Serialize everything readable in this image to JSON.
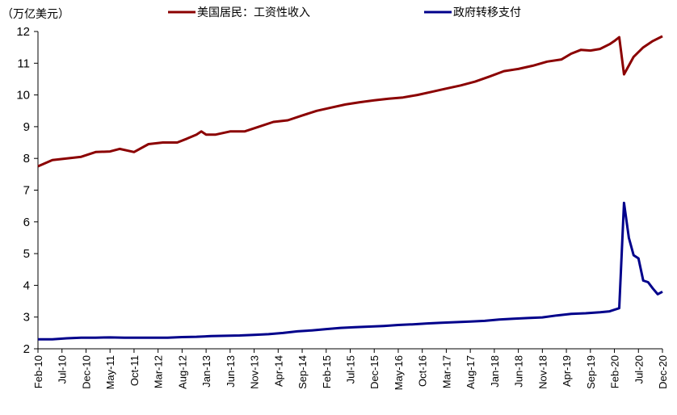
{
  "chart_data": {
    "type": "line",
    "unit_label": "（万亿美元）",
    "ylim": [
      2,
      12
    ],
    "yticks": [
      "2",
      "3",
      "4",
      "5",
      "6",
      "7",
      "8",
      "9",
      "10",
      "11",
      "12"
    ],
    "x_tick_labels": [
      "Feb-10",
      "Jul-10",
      "Dec-10",
      "May-11",
      "Oct-11",
      "Mar-12",
      "Aug-12",
      "Jan-13",
      "Jun-13",
      "Nov-13",
      "Apr-14",
      "Sep-14",
      "Feb-15",
      "Jul-15",
      "Dec-15",
      "May-16",
      "Oct-16",
      "Mar-17",
      "Aug-17",
      "Jan-18",
      "Jun-18",
      "Nov-18",
      "Apr-19",
      "Sep-19",
      "Feb-20",
      "Jul-20",
      "Dec-20"
    ],
    "x_start": "2010-02",
    "x_end": "2020-12",
    "grid": false,
    "legend_position": "top",
    "series": [
      {
        "name": "美国居民：工资性收入",
        "color": "#8B0000",
        "points": [
          [
            "2010-02",
            7.75
          ],
          [
            "2010-05",
            7.95
          ],
          [
            "2010-08",
            8.0
          ],
          [
            "2010-11",
            8.05
          ],
          [
            "2011-02",
            8.2
          ],
          [
            "2011-05",
            8.22
          ],
          [
            "2011-07",
            8.3
          ],
          [
            "2011-10",
            8.2
          ],
          [
            "2012-01",
            8.45
          ],
          [
            "2012-04",
            8.5
          ],
          [
            "2012-07",
            8.5
          ],
          [
            "2012-09",
            8.62
          ],
          [
            "2012-11",
            8.75
          ],
          [
            "2012-12",
            8.85
          ],
          [
            "2013-01",
            8.75
          ],
          [
            "2013-03",
            8.75
          ],
          [
            "2013-06",
            8.85
          ],
          [
            "2013-09",
            8.85
          ],
          [
            "2013-12",
            9.0
          ],
          [
            "2014-03",
            9.15
          ],
          [
            "2014-06",
            9.2
          ],
          [
            "2014-09",
            9.35
          ],
          [
            "2014-12",
            9.5
          ],
          [
            "2015-03",
            9.6
          ],
          [
            "2015-06",
            9.7
          ],
          [
            "2015-09",
            9.77
          ],
          [
            "2015-12",
            9.83
          ],
          [
            "2016-03",
            9.88
          ],
          [
            "2016-06",
            9.92
          ],
          [
            "2016-09",
            10.0
          ],
          [
            "2016-12",
            10.1
          ],
          [
            "2017-03",
            10.2
          ],
          [
            "2017-06",
            10.3
          ],
          [
            "2017-09",
            10.42
          ],
          [
            "2017-12",
            10.58
          ],
          [
            "2018-03",
            10.75
          ],
          [
            "2018-06",
            10.82
          ],
          [
            "2018-09",
            10.92
          ],
          [
            "2018-12",
            11.05
          ],
          [
            "2019-03",
            11.12
          ],
          [
            "2019-05",
            11.3
          ],
          [
            "2019-07",
            11.42
          ],
          [
            "2019-09",
            11.4
          ],
          [
            "2019-11",
            11.45
          ],
          [
            "2020-01",
            11.6
          ],
          [
            "2020-02",
            11.7
          ],
          [
            "2020-03",
            11.82
          ],
          [
            "2020-04",
            10.65
          ],
          [
            "2020-06",
            11.2
          ],
          [
            "2020-08",
            11.5
          ],
          [
            "2020-10",
            11.7
          ],
          [
            "2020-12",
            11.85
          ]
        ]
      },
      {
        "name": "政府转移支付",
        "color": "#00008B",
        "points": [
          [
            "2010-02",
            2.3
          ],
          [
            "2010-05",
            2.3
          ],
          [
            "2010-08",
            2.33
          ],
          [
            "2010-11",
            2.35
          ],
          [
            "2011-02",
            2.35
          ],
          [
            "2011-05",
            2.36
          ],
          [
            "2011-08",
            2.35
          ],
          [
            "2011-11",
            2.35
          ],
          [
            "2012-02",
            2.35
          ],
          [
            "2012-05",
            2.35
          ],
          [
            "2012-08",
            2.37
          ],
          [
            "2012-11",
            2.38
          ],
          [
            "2013-02",
            2.4
          ],
          [
            "2013-05",
            2.41
          ],
          [
            "2013-08",
            2.42
          ],
          [
            "2013-11",
            2.44
          ],
          [
            "2014-02",
            2.46
          ],
          [
            "2014-05",
            2.5
          ],
          [
            "2014-08",
            2.55
          ],
          [
            "2014-11",
            2.58
          ],
          [
            "2015-02",
            2.62
          ],
          [
            "2015-05",
            2.66
          ],
          [
            "2015-08",
            2.68
          ],
          [
            "2015-11",
            2.7
          ],
          [
            "2016-02",
            2.72
          ],
          [
            "2016-05",
            2.75
          ],
          [
            "2016-08",
            2.77
          ],
          [
            "2016-11",
            2.8
          ],
          [
            "2017-02",
            2.82
          ],
          [
            "2017-05",
            2.84
          ],
          [
            "2017-08",
            2.86
          ],
          [
            "2017-11",
            2.88
          ],
          [
            "2018-02",
            2.92
          ],
          [
            "2018-05",
            2.95
          ],
          [
            "2018-08",
            2.97
          ],
          [
            "2018-11",
            2.99
          ],
          [
            "2019-02",
            3.05
          ],
          [
            "2019-05",
            3.1
          ],
          [
            "2019-08",
            3.12
          ],
          [
            "2019-11",
            3.15
          ],
          [
            "2020-01",
            3.18
          ],
          [
            "2020-03",
            3.28
          ],
          [
            "2020-04",
            6.6
          ],
          [
            "2020-05",
            5.5
          ],
          [
            "2020-06",
            4.95
          ],
          [
            "2020-07",
            4.85
          ],
          [
            "2020-08",
            4.15
          ],
          [
            "2020-09",
            4.1
          ],
          [
            "2020-10",
            3.9
          ],
          [
            "2020-11",
            3.72
          ],
          [
            "2020-12",
            3.8
          ]
        ]
      }
    ]
  }
}
